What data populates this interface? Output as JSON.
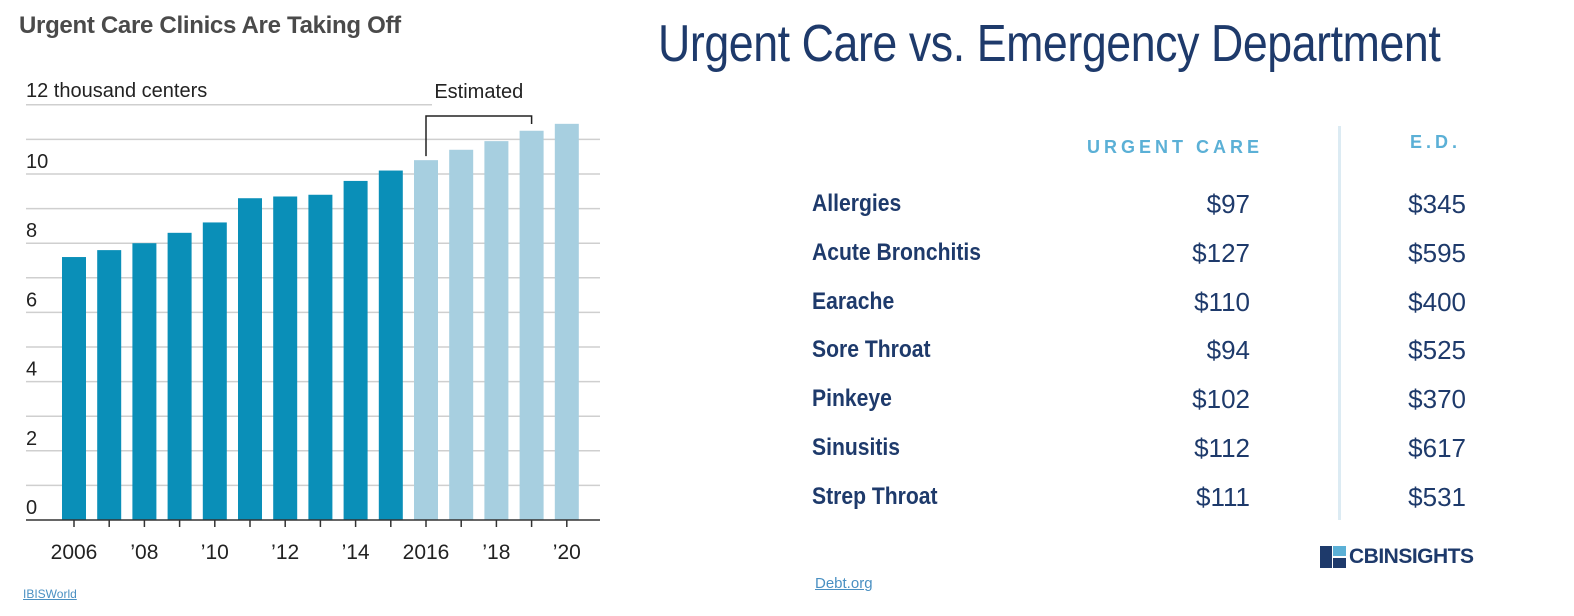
{
  "left_title": "Urgent Care Clinics Are Taking Off",
  "left_source": "IBISWorld",
  "chart_data": [
    {
      "type": "bar",
      "title": "Urgent Care Clinics Are Taking Off",
      "ylabel": "12 thousand centers",
      "annotation": "Estimated",
      "categories": [
        "2006",
        "2007",
        "2008",
        "2009",
        "2010",
        "2011",
        "2012",
        "2013",
        "2014",
        "2015",
        "2016",
        "2017",
        "2018",
        "2019",
        "2020"
      ],
      "values": [
        7.6,
        7.8,
        8.0,
        8.3,
        8.6,
        9.3,
        9.35,
        9.4,
        9.8,
        10.1,
        10.4,
        10.7,
        10.95,
        11.25,
        11.45
      ],
      "estimated": [
        false,
        false,
        false,
        false,
        false,
        false,
        false,
        false,
        false,
        false,
        true,
        true,
        true,
        true,
        true
      ],
      "x_tick_labels": [
        "2006",
        "’08",
        "’10",
        "’12",
        "’14",
        "2016",
        "’18",
        "’20"
      ],
      "y_tick_labels": [
        "0",
        "2",
        "4",
        "6",
        "8",
        "10"
      ],
      "ylim": [
        0,
        12
      ],
      "grid": true,
      "colors": {
        "actual": "#0a8fb8",
        "estimated": "#a7cfe0"
      }
    }
  ],
  "right": {
    "title": "Urgent Care vs. Emergency Department",
    "col_uc": "URGENT CARE",
    "col_ed": "E.D.",
    "rows": [
      {
        "label": "Allergies",
        "uc": "$97",
        "ed": "$345"
      },
      {
        "label": "Acute Bronchitis",
        "uc": "$127",
        "ed": "$595"
      },
      {
        "label": "Earache",
        "uc": "$110",
        "ed": "$400"
      },
      {
        "label": "Sore Throat",
        "uc": "$94",
        "ed": "$525"
      },
      {
        "label": "Pinkeye",
        "uc": "$102",
        "ed": "$370"
      },
      {
        "label": "Sinusitis",
        "uc": "$112",
        "ed": "$617"
      },
      {
        "label": "Strep Throat",
        "uc": "$111",
        "ed": "$531"
      }
    ],
    "logo_text": "CBINSIGHTS",
    "source": "Debt.org"
  },
  "colors": {
    "navy": "#1e3a6b",
    "accent": "#5bb0d6"
  },
  "icons": {
    "logo": "cb-logo-icon"
  }
}
